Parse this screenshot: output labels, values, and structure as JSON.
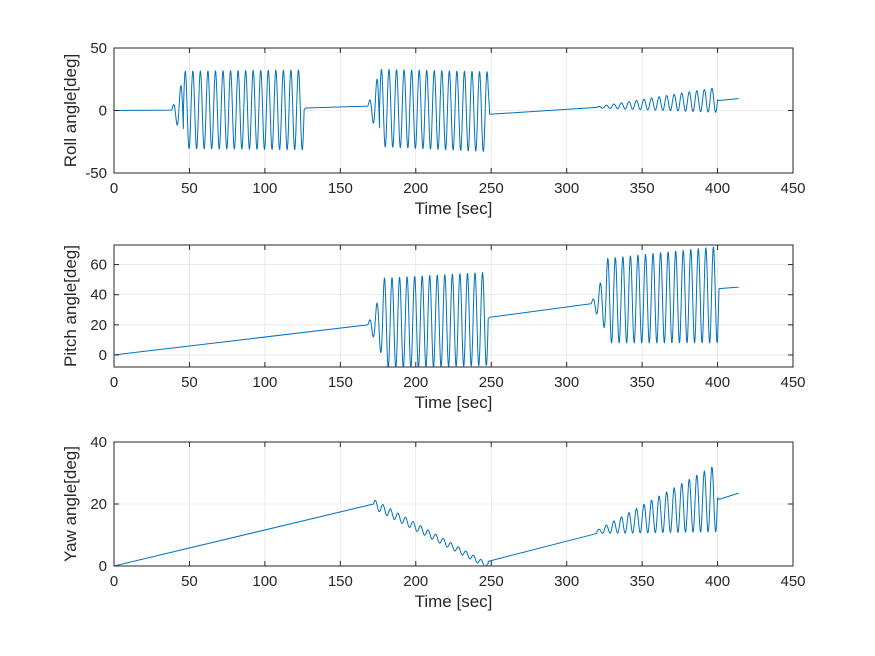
{
  "chart_data": [
    {
      "type": "line",
      "xlabel": "Time [sec]",
      "ylabel": "Roll angle[deg]",
      "xlim": [
        0,
        450
      ],
      "ylim": [
        -50,
        50
      ],
      "xticks": [
        0,
        50,
        100,
        150,
        200,
        250,
        300,
        350,
        400,
        450
      ],
      "yticks": [
        -50,
        0,
        50
      ],
      "grid": true,
      "color": "#0072BD",
      "segments": [
        {
          "kind": "ramp",
          "t0": 0,
          "t1": 38,
          "y0": 0,
          "y1": 0.3
        },
        {
          "kind": "osc",
          "t0": 38,
          "t1": 46,
          "base0": 0.3,
          "base1": 0.3,
          "amp0": 0,
          "amp1": 25,
          "period": 5
        },
        {
          "kind": "osc",
          "t0": 46,
          "t1": 126,
          "base0": 0.5,
          "base1": 0.5,
          "amp0": 31,
          "amp1": 32,
          "period": 5
        },
        {
          "kind": "ramp",
          "t0": 127,
          "t1": 168,
          "y0": 2,
          "y1": 3.5
        },
        {
          "kind": "osc",
          "t0": 168,
          "t1": 176,
          "base0": 3.5,
          "base1": 3,
          "amp0": 0,
          "amp1": 28,
          "period": 5
        },
        {
          "kind": "osc",
          "t0": 176,
          "t1": 248,
          "base0": 2,
          "base1": -1,
          "amp0": 31,
          "amp1": 32,
          "period": 5
        },
        {
          "kind": "ramp",
          "t0": 249,
          "t1": 320,
          "y0": -3,
          "y1": 2.5
        },
        {
          "kind": "osc",
          "t0": 320,
          "t1": 400,
          "base0": 2.5,
          "base1": 8.5,
          "amp0": 0.5,
          "amp1": 10,
          "period": 5
        },
        {
          "kind": "ramp",
          "t0": 401,
          "t1": 414,
          "y0": 8,
          "y1": 9.5
        }
      ]
    },
    {
      "type": "line",
      "xlabel": "Time [sec]",
      "ylabel": "Pitch angle[deg]",
      "xlim": [
        0,
        450
      ],
      "ylim": [
        -8,
        73
      ],
      "xticks": [
        0,
        50,
        100,
        150,
        200,
        250,
        300,
        350,
        400,
        450
      ],
      "yticks": [
        0,
        20,
        40,
        60
      ],
      "grid": true,
      "color": "#0072BD",
      "segments": [
        {
          "kind": "ramp",
          "t0": 0,
          "t1": 168,
          "y0": 0,
          "y1": 20
        },
        {
          "kind": "osc",
          "t0": 168,
          "t1": 178,
          "base0": 20,
          "base1": 21,
          "amp0": 0,
          "amp1": 22,
          "period": 5
        },
        {
          "kind": "osc",
          "t0": 178,
          "t1": 248,
          "base0": 21,
          "base1": 24,
          "amp0": 30,
          "amp1": 31,
          "period": 5
        },
        {
          "kind": "ramp",
          "t0": 249,
          "t1": 316,
          "y0": 25,
          "y1": 34
        },
        {
          "kind": "osc",
          "t0": 316,
          "t1": 326,
          "base0": 34,
          "base1": 36,
          "amp0": 0,
          "amp1": 20,
          "period": 5
        },
        {
          "kind": "osc",
          "t0": 326,
          "t1": 400,
          "base0": 36,
          "base1": 40,
          "amp0": 28,
          "amp1": 32,
          "period": 5
        },
        {
          "kind": "ramp",
          "t0": 401,
          "t1": 414,
          "y0": 44,
          "y1": 45
        }
      ]
    },
    {
      "type": "line",
      "xlabel": "Time [sec]",
      "ylabel": "Yaw angle[deg]",
      "xlim": [
        0,
        450
      ],
      "ylim": [
        0,
        40
      ],
      "xticks": [
        0,
        50,
        100,
        150,
        200,
        250,
        300,
        350,
        400,
        450
      ],
      "yticks": [
        0,
        20,
        40
      ],
      "grid": true,
      "color": "#0072BD",
      "segments": [
        {
          "kind": "ramp",
          "t0": 0,
          "t1": 172,
          "y0": 0,
          "y1": 20
        },
        {
          "kind": "osc",
          "t0": 172,
          "t1": 248,
          "base0": 20,
          "base1": 0,
          "amp0": 1.5,
          "amp1": 0.8,
          "period": 5
        },
        {
          "kind": "ramp",
          "t0": 248,
          "t1": 320,
          "y0": 1.5,
          "y1": 10.5
        },
        {
          "kind": "osc",
          "t0": 320,
          "t1": 400,
          "base0": 11,
          "base1": 22,
          "amp0": 0.5,
          "amp1": 11,
          "period": 5
        },
        {
          "kind": "ramp",
          "t0": 401,
          "t1": 414,
          "y0": 21.5,
          "y1": 23.5
        }
      ]
    }
  ]
}
